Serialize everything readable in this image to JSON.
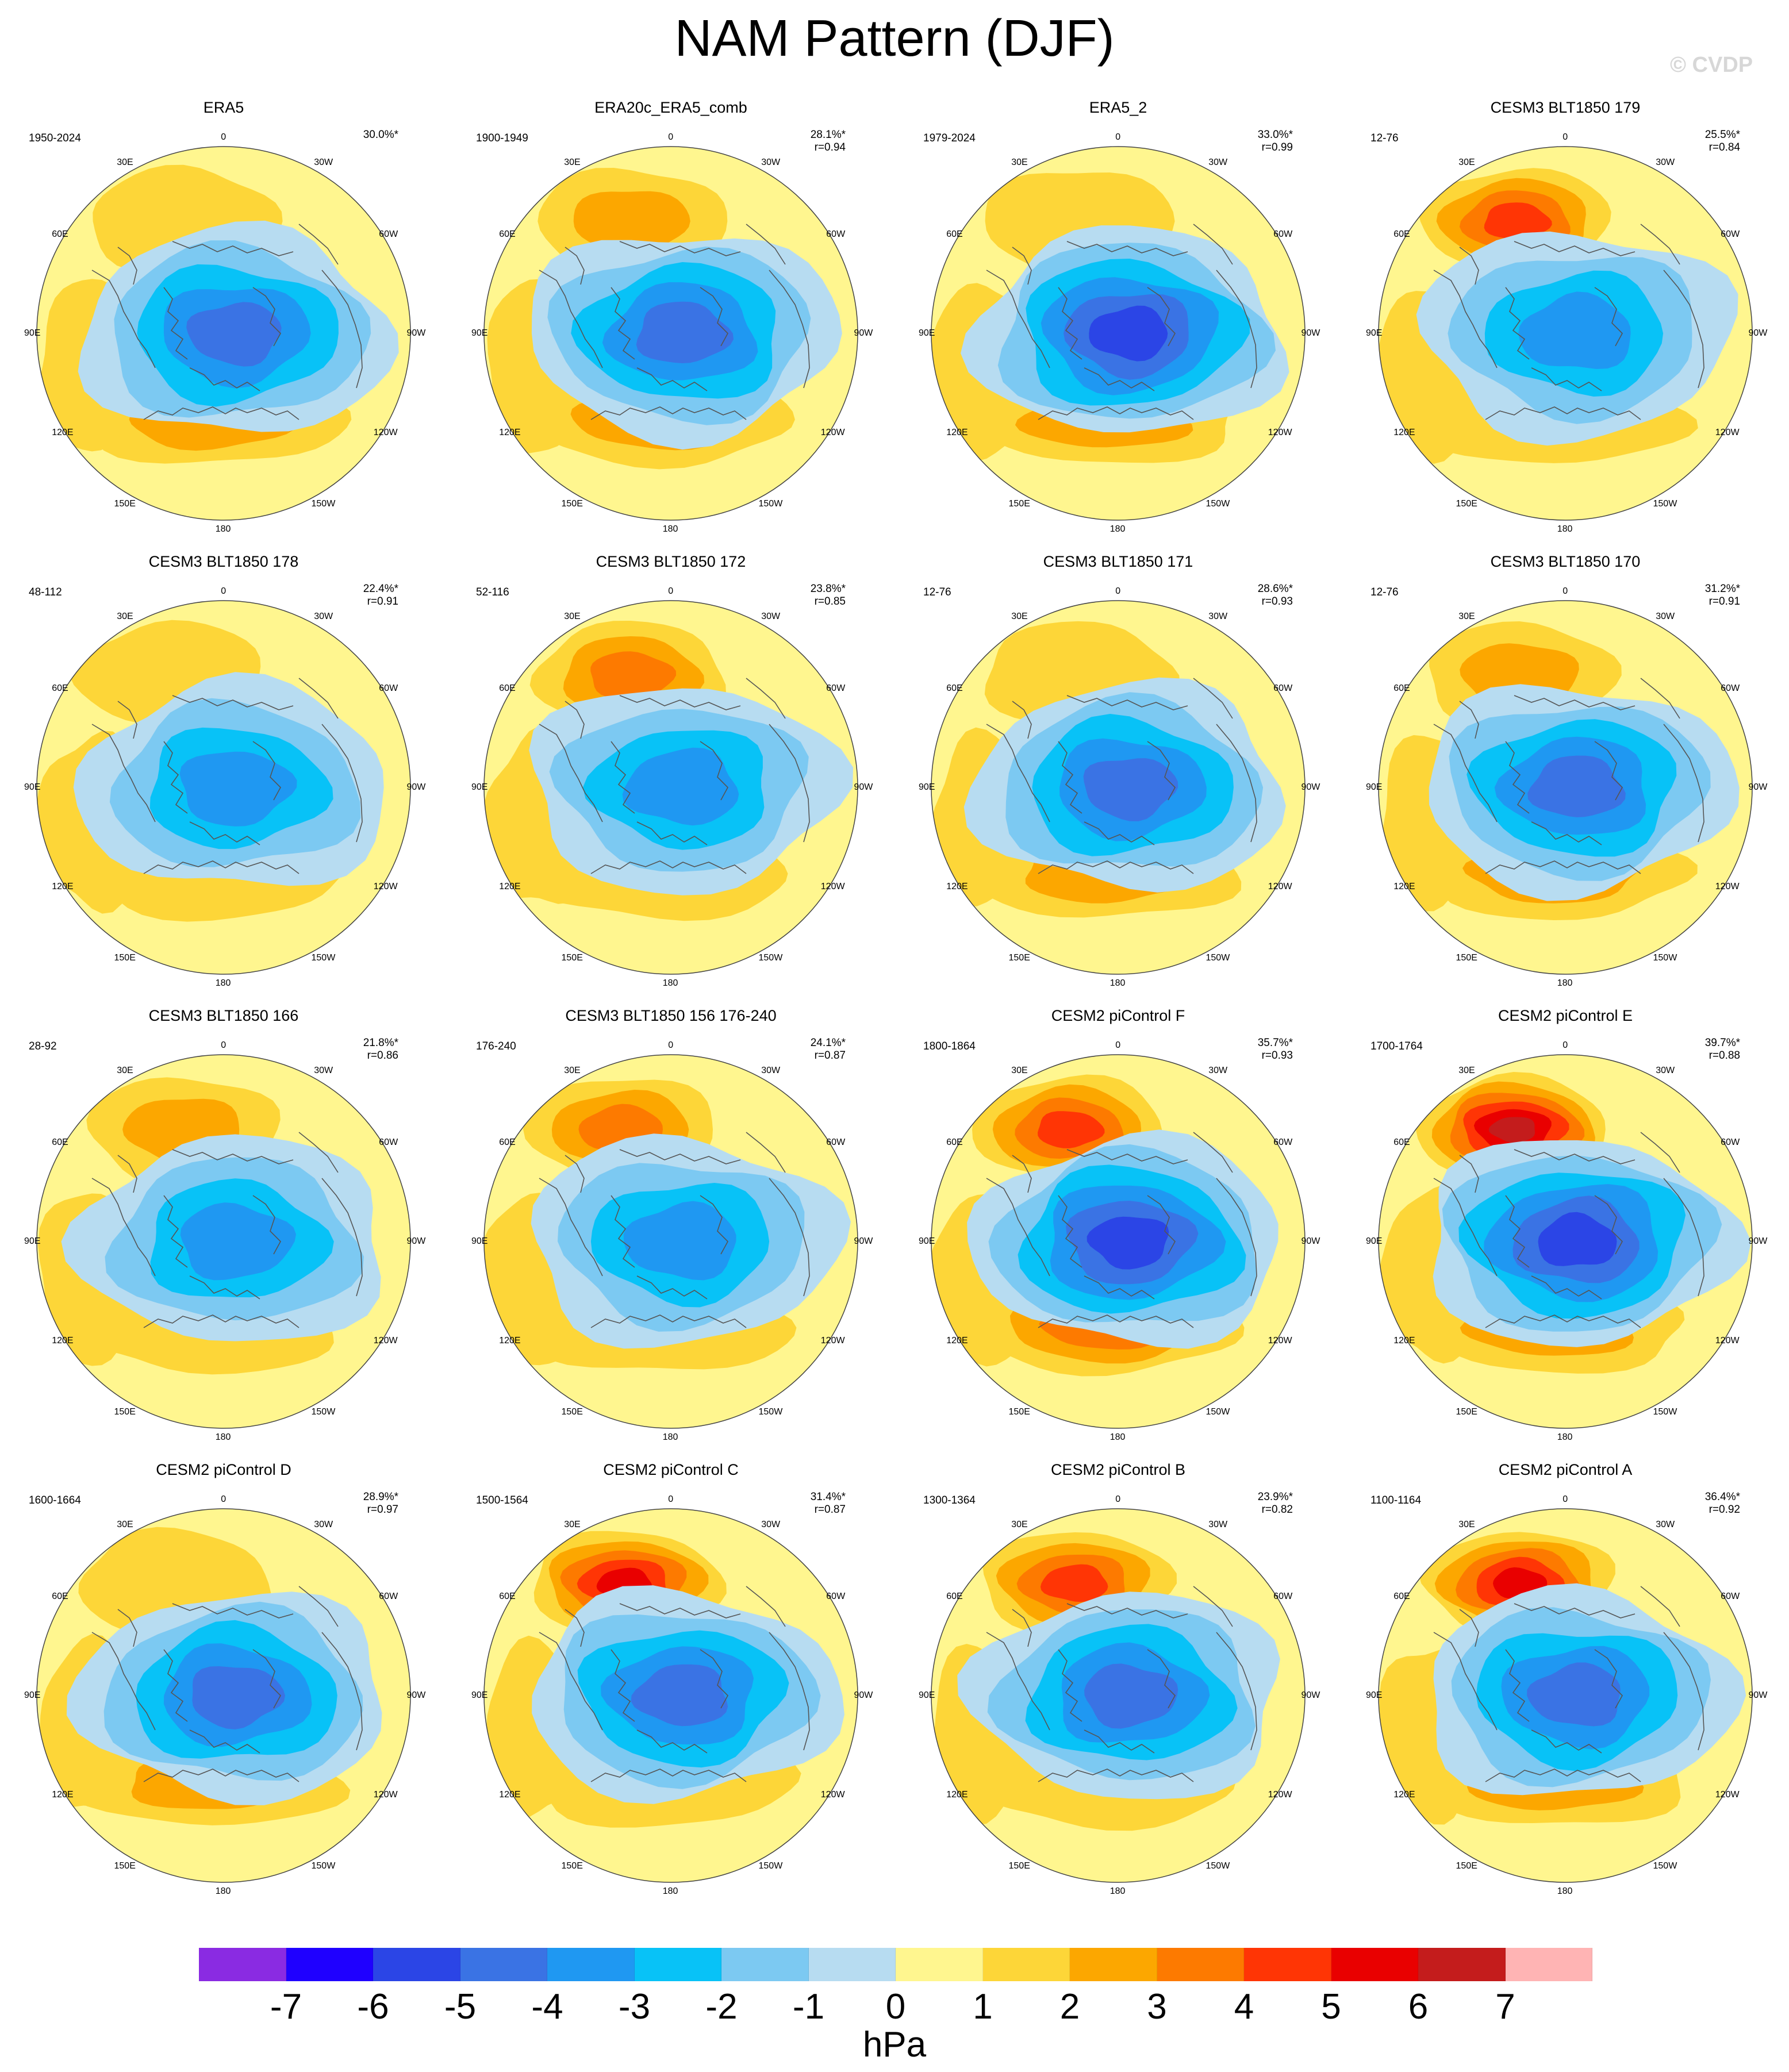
{
  "title": "NAM Pattern (DJF)",
  "watermark": "© CVDP",
  "units": "hPa",
  "colors": {
    "-8": "#8a2be2",
    "-7": "#1f00ff",
    "-6": "#2b45e6",
    "-5": "#3a73e4",
    "-4": "#1f98f2",
    "-3": "#08c2f7",
    "-2": "#7cc9f2",
    "-1": "#b7dcf1",
    "0": "#fff68f",
    "1": "#fdd638",
    "2": "#fca700",
    "3": "#fd7a00",
    "4": "#ff3505",
    "5": "#e90000",
    "6": "#c41c1c",
    "7": "#ffb4b4"
  },
  "colorbar": {
    "colors": [
      "#8a2be2",
      "#1f00ff",
      "#2b45e6",
      "#3a73e4",
      "#1f98f2",
      "#08c2f7",
      "#7cc9f2",
      "#b7dcf1",
      "#fff68f",
      "#fdd638",
      "#fca700",
      "#fd7a00",
      "#ff3505",
      "#e90000",
      "#c41c1c",
      "#ffb4b4"
    ],
    "ticks": [
      "-7",
      "-6",
      "-5",
      "-4",
      "-3",
      "-2",
      "-1",
      "0",
      "1",
      "2",
      "3",
      "4",
      "5",
      "6",
      "7"
    ]
  },
  "lon_labels": {
    "n": "180",
    "nw": "150W",
    "ne": "150E",
    "wnw": "120W",
    "ene": "120E",
    "w": "90W",
    "e": "90E",
    "wsw": "60W",
    "ese": "60E",
    "ssw": "30W",
    "sse": "30E",
    "s": "0"
  },
  "panels": [
    {
      "title": "ERA5",
      "period": "1950-2024",
      "pct": "30.0%*",
      "r": "",
      "pac": 1,
      "pac_peak": 1,
      "atl": 2,
      "atl_peak": 2,
      "neg": -5,
      "pac_dx": 0
    },
    {
      "title": "ERA20c_ERA5_comb",
      "period": "1900-1949",
      "pct": "28.1%*",
      "r": "r=0.94",
      "pac": 2,
      "pac_peak": 2,
      "atl": 1,
      "atl_peak": 2,
      "neg": -5,
      "pac_dx": 0
    },
    {
      "title": "ERA5_2",
      "period": "1979-2024",
      "pct": "33.0%*",
      "r": "r=0.99",
      "pac": 1,
      "pac_peak": 1,
      "atl": 2,
      "atl_peak": 2,
      "neg": -6,
      "pac_dx": 0
    },
    {
      "title": "CESM3 BLT1850 179",
      "period": "12-76",
      "pct": "25.5%*",
      "r": "r=0.84",
      "pac": 2,
      "pac_peak": 4,
      "atl": 1,
      "atl_peak": 1,
      "neg": -4,
      "pac_dx": -15
    },
    {
      "title": "CESM3 BLT1850 178",
      "period": "48-112",
      "pct": "22.4%*",
      "r": "r=0.91",
      "pac": 1,
      "pac_peak": 1,
      "atl": 1,
      "atl_peak": 1,
      "neg": -4,
      "pac_dx": -20
    },
    {
      "title": "CESM3 BLT1850 172",
      "period": "52-116",
      "pct": "23.8%*",
      "r": "r=0.85",
      "pac": 2,
      "pac_peak": 3,
      "atl": 1,
      "atl_peak": 1,
      "neg": -4,
      "pac_dx": 0
    },
    {
      "title": "CESM3 BLT1850 171",
      "period": "12-76",
      "pct": "28.6%*",
      "r": "r=0.93",
      "pac": 1,
      "pac_peak": 1,
      "atl": 2,
      "atl_peak": 2,
      "neg": -5,
      "pac_dx": 0
    },
    {
      "title": "CESM3 BLT1850 170",
      "period": "12-76",
      "pct": "31.2%*",
      "r": "r=0.91",
      "pac": 2,
      "pac_peak": 2,
      "atl": 2,
      "atl_peak": 2,
      "neg": -5,
      "pac_dx": -10
    },
    {
      "title": "CESM3 BLT1850 166",
      "period": "28-92",
      "pct": "21.8%*",
      "r": "r=0.86",
      "pac": 2,
      "pac_peak": 2,
      "atl": 1,
      "atl_peak": 1,
      "neg": -4,
      "pac_dx": 0
    },
    {
      "title": "CESM3 BLT1850 156 176-240",
      "period": "176-240",
      "pct": "24.1%*",
      "r": "r=0.87",
      "pac": 2,
      "pac_peak": 3,
      "atl": 1,
      "atl_peak": 1,
      "neg": -4,
      "pac_dx": -15
    },
    {
      "title": "CESM2 piControl F",
      "period": "1800-1864",
      "pct": "35.7%*",
      "r": "r=0.93",
      "pac": 2,
      "pac_peak": 4,
      "atl": 2,
      "atl_peak": 3,
      "neg": -6,
      "pac_dx": -15
    },
    {
      "title": "CESM2 piControl E",
      "period": "1700-1764",
      "pct": "39.7%*",
      "r": "r=0.88",
      "pac": 3,
      "pac_peak": 6,
      "atl": 2,
      "atl_peak": 2,
      "neg": -6,
      "pac_dx": -20
    },
    {
      "title": "CESM2 piControl D",
      "period": "1600-1664",
      "pct": "28.9%*",
      "r": "r=0.97",
      "pac": 1,
      "pac_peak": 1,
      "atl": 2,
      "atl_peak": 2,
      "neg": -5,
      "pac_dx": -15
    },
    {
      "title": "CESM2 piControl C",
      "period": "1500-1564",
      "pct": "31.4%*",
      "r": "r=0.87",
      "pac": 3,
      "pac_peak": 5,
      "atl": 1,
      "atl_peak": 1,
      "neg": -5,
      "pac_dx": -10
    },
    {
      "title": "CESM2 piControl B",
      "period": "1300-1364",
      "pct": "23.9%*",
      "r": "r=0.82",
      "pac": 2,
      "pac_peak": 4,
      "atl": 1,
      "atl_peak": 1,
      "neg": -5,
      "pac_dx": -5
    },
    {
      "title": "CESM2 piControl A",
      "period": "1100-1164",
      "pct": "36.4%*",
      "r": "r=0.92",
      "pac": 3,
      "pac_peak": 5,
      "atl": 2,
      "atl_peak": 2,
      "neg": -5,
      "pac_dx": -10
    }
  ]
}
